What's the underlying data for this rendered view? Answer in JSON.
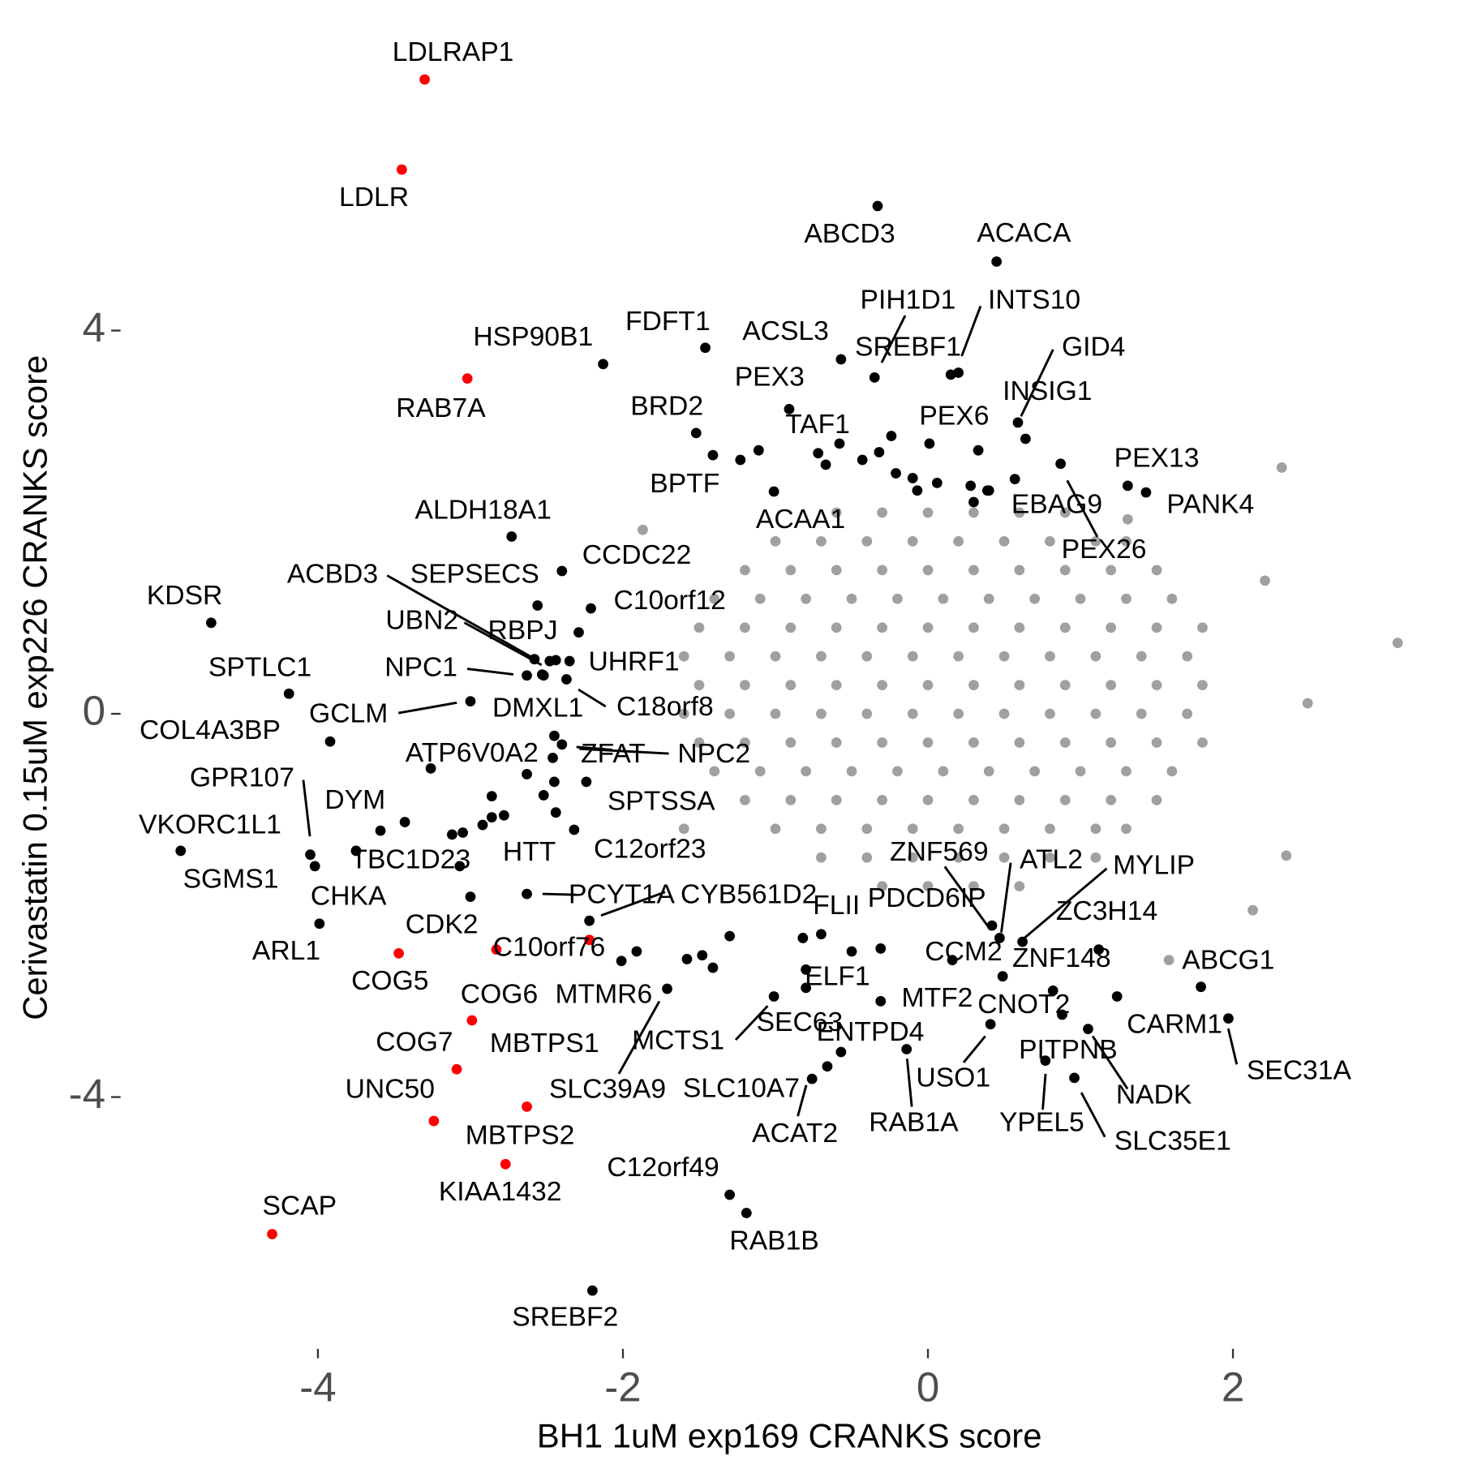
{
  "chart_data": {
    "type": "scatter",
    "xlabel": "BH1 1uM exp169 CRANKS score",
    "ylabel": "Cerivastatin 0.15uM exp226 CRANKS score",
    "xlim": [
      -5.22,
      3.18
    ],
    "ylim": [
      -6.51,
      6.86
    ],
    "xticks": [
      -4,
      -2,
      0,
      2
    ],
    "yticks": [
      -4,
      0,
      4
    ],
    "grid": false,
    "series": [
      {
        "color": "#a0a0a0",
        "x": [
          -0.6,
          -0.3,
          0,
          0.3,
          0.6,
          0.9,
          -1.0,
          -0.7,
          -0.4,
          -0.1,
          0.2,
          0.5,
          0.8,
          1.1,
          1.3,
          -1.2,
          -0.9,
          -0.6,
          -0.3,
          0,
          0.3,
          0.6,
          0.9,
          1.2,
          1.5,
          -1.4,
          -1.1,
          -0.8,
          -0.5,
          -0.2,
          0.1,
          0.4,
          0.7,
          1.0,
          1.3,
          1.6,
          -1.5,
          -1.2,
          -0.9,
          -0.6,
          -0.3,
          0,
          0.3,
          0.6,
          0.9,
          1.2,
          1.5,
          1.8,
          -1.6,
          -1.3,
          -1.0,
          -0.7,
          -0.4,
          -0.1,
          0.2,
          0.5,
          0.8,
          1.1,
          1.4,
          1.7,
          -1.5,
          -1.2,
          -0.9,
          -0.6,
          -0.3,
          0,
          0.3,
          0.6,
          0.9,
          1.2,
          1.5,
          1.8,
          -1.6,
          -1.3,
          -1.0,
          -0.7,
          -0.4,
          -0.1,
          0.2,
          0.5,
          0.8,
          1.1,
          1.4,
          1.7,
          -1.5,
          -1.2,
          -0.9,
          -0.6,
          -0.3,
          0,
          0.3,
          0.6,
          0.9,
          1.2,
          1.5,
          1.8,
          -1.4,
          -1.1,
          -0.8,
          -0.5,
          -0.2,
          0.1,
          0.4,
          0.7,
          1.0,
          1.3,
          1.6,
          -1.2,
          -0.9,
          -0.6,
          -0.3,
          0,
          0.3,
          0.6,
          0.9,
          1.2,
          1.5,
          -1.0,
          -0.7,
          -0.4,
          -0.1,
          0.2,
          0.5,
          0.8,
          1.1,
          1.3,
          -0.7,
          -0.4,
          -0.1,
          0.2,
          0.5,
          0.8,
          1.1,
          -0.3,
          0,
          0.3,
          0.6,
          3.08,
          2.32,
          2.21,
          2.49,
          2.35,
          2.13,
          1.58,
          1.31,
          -1.87,
          -1.6
        ],
        "y": [
          2.1,
          2.1,
          2.1,
          2.1,
          2.1,
          2.1,
          1.8,
          1.8,
          1.8,
          1.8,
          1.8,
          1.8,
          1.8,
          1.8,
          1.8,
          1.5,
          1.5,
          1.5,
          1.5,
          1.5,
          1.5,
          1.5,
          1.5,
          1.5,
          1.5,
          1.2,
          1.2,
          1.2,
          1.2,
          1.2,
          1.2,
          1.2,
          1.2,
          1.2,
          1.2,
          1.2,
          0.9,
          0.9,
          0.9,
          0.9,
          0.9,
          0.9,
          0.9,
          0.9,
          0.9,
          0.9,
          0.9,
          0.9,
          0.6,
          0.6,
          0.6,
          0.6,
          0.6,
          0.6,
          0.6,
          0.6,
          0.6,
          0.6,
          0.6,
          0.6,
          0.3,
          0.3,
          0.3,
          0.3,
          0.3,
          0.3,
          0.3,
          0.3,
          0.3,
          0.3,
          0.3,
          0.3,
          0,
          0,
          0,
          0,
          0,
          0,
          0,
          0,
          0,
          0,
          0,
          0,
          -0.3,
          -0.3,
          -0.3,
          -0.3,
          -0.3,
          -0.3,
          -0.3,
          -0.3,
          -0.3,
          -0.3,
          -0.3,
          -0.3,
          -0.6,
          -0.6,
          -0.6,
          -0.6,
          -0.6,
          -0.6,
          -0.6,
          -0.6,
          -0.6,
          -0.6,
          -0.6,
          -0.9,
          -0.9,
          -0.9,
          -0.9,
          -0.9,
          -0.9,
          -0.9,
          -0.9,
          -0.9,
          -0.9,
          -1.2,
          -1.2,
          -1.2,
          -1.2,
          -1.2,
          -1.2,
          -1.2,
          -1.2,
          -1.2,
          -1.5,
          -1.5,
          -1.5,
          -1.5,
          -1.5,
          -1.5,
          -1.5,
          -1.8,
          -1.8,
          -1.8,
          -1.8,
          0.74,
          2.57,
          1.39,
          0.11,
          -1.48,
          -2.05,
          -2.57,
          2.03,
          1.92,
          -1.2
        ]
      },
      {
        "color": "#000000",
        "labels": [
          "ABCD3",
          "ACACA",
          "FDFT1",
          "HSP90B1",
          "ACSL3",
          "PIH1D1",
          "INTS10",
          "SREBF1",
          "GID4",
          "INSIG1",
          "PEX3",
          "BRD2",
          "TAF1",
          "PEX6",
          "BPTF",
          "EBAG9",
          "PEX26",
          "PEX13",
          "PANK4",
          "ACAA1",
          "ALDH18A1",
          "CCDC22",
          "SEPSECS",
          "ACBD3",
          "KDSR",
          "C10orf12",
          "UBN2",
          "RBPJ",
          "UHRF1",
          "NPC1",
          "C18orf8",
          "SPTLC1",
          "GCLM",
          "DMXL1",
          "COL4A3BP",
          "ATP6V0A2",
          "ZFAT",
          "NPC2",
          "GPR107",
          "DYM",
          "SPTSSA",
          "VKORC1L1",
          "SGMS1",
          "TBC1D23",
          "HTT",
          "C12orf23",
          "PCYT1A",
          "CYB561D2",
          "CHKA",
          "ARL1",
          "CDK2",
          "FLII",
          "PDCD6IP",
          "ZNF569",
          "ATL2",
          "MYLIP",
          "ZC3H14",
          "CCM2",
          "ZNF148",
          "ELF1",
          "MTMR6",
          "SLC39A9",
          "MTF2",
          "CNOT2",
          "SEC63",
          "MCTS1",
          "ENTPD4",
          "SLC10A7",
          "ACAT2",
          "RAB1A",
          "USO1",
          "PITPNB",
          "YPEL5",
          "NADK",
          "SLC35E1",
          "CARM1",
          "ABCG1",
          "SEC31A",
          "C12orf49",
          "RAB1B",
          "SREBF2",
          null,
          null,
          null,
          null,
          null,
          null,
          null,
          null,
          null,
          null,
          null,
          null,
          null,
          null,
          null,
          null,
          null,
          null,
          null,
          null,
          null,
          null,
          null,
          null,
          null,
          null,
          null,
          null,
          null,
          null,
          null,
          null,
          null,
          null,
          null,
          null
        ],
        "x": [
          -0.33,
          0.45,
          -1.46,
          -2.13,
          -0.57,
          -0.35,
          0.2,
          0.15,
          0.59,
          0.64,
          -0.91,
          -1.52,
          -0.72,
          0.01,
          -1.41,
          0.39,
          0.87,
          1.31,
          1.43,
          -1.01,
          -2.73,
          -2.4,
          -2.56,
          -2.58,
          -4.7,
          -2.21,
          -2.48,
          -2.29,
          -2.35,
          -2.63,
          -2.37,
          -4.19,
          -3.0,
          -2.52,
          -3.92,
          -3.26,
          -2.4,
          -2.45,
          -4.05,
          -3.43,
          -2.24,
          -4.9,
          -4.02,
          -3.59,
          -2.32,
          -1.91,
          -2.63,
          -2.22,
          -3.75,
          -3.99,
          -3.0,
          -0.82,
          -0.31,
          0.42,
          0.47,
          0.62,
          1.12,
          0.16,
          0.49,
          -0.8,
          -2.01,
          -1.71,
          -0.31,
          0.82,
          -0.8,
          -1.01,
          -0.57,
          -0.66,
          -0.76,
          -0.14,
          0.41,
          0.88,
          0.77,
          1.05,
          0.96,
          1.24,
          1.79,
          1.97,
          -1.3,
          -1.19,
          -2.2,
          -2.53,
          -2.44,
          -2.46,
          -2.63,
          -2.45,
          -2.52,
          -2.44,
          -3.12,
          -3.05,
          -2.92,
          -2.86,
          -2.78,
          -2.86,
          -3.07,
          -1.23,
          -1.11,
          -0.67,
          -0.58,
          -0.43,
          -0.32,
          -0.24,
          -0.21,
          -0.1,
          -0.07,
          0.06,
          0.28,
          0.3,
          0.4,
          0.57,
          0.33,
          -1.48,
          -1.58,
          -1.41,
          -1.3,
          -0.7,
          -0.5
        ],
        "y": [
          5.3,
          4.72,
          3.82,
          3.65,
          3.7,
          3.51,
          3.56,
          3.54,
          3.04,
          2.87,
          3.18,
          2.93,
          2.72,
          2.82,
          2.7,
          2.33,
          2.61,
          2.38,
          2.31,
          2.32,
          1.85,
          1.49,
          1.13,
          0.57,
          0.95,
          1.1,
          0.55,
          0.85,
          0.55,
          0.4,
          0.36,
          0.21,
          0.13,
          0.4,
          -0.29,
          -0.57,
          -0.32,
          -0.23,
          -1.47,
          -1.13,
          -0.71,
          -1.43,
          -1.59,
          -1.22,
          -1.21,
          -2.48,
          -1.88,
          -2.16,
          -1.43,
          -2.19,
          -1.91,
          -2.34,
          -2.45,
          -2.21,
          -2.34,
          -2.38,
          -2.46,
          -2.57,
          -2.74,
          -2.67,
          -2.58,
          -2.87,
          -3.0,
          -2.89,
          -2.86,
          -2.95,
          -3.53,
          -3.68,
          -3.81,
          -3.5,
          -3.24,
          -3.14,
          -3.62,
          -3.29,
          -3.8,
          -2.95,
          -2.85,
          -3.18,
          -5.02,
          -5.21,
          -6.02,
          0.41,
          0.56,
          -0.46,
          -0.63,
          -0.71,
          -0.85,
          -1.03,
          -1.26,
          -1.24,
          -1.16,
          -1.08,
          -1.06,
          -0.86,
          -1.59,
          2.65,
          2.75,
          2.6,
          2.82,
          2.65,
          2.73,
          2.9,
          2.51,
          2.46,
          2.33,
          2.41,
          2.38,
          2.21,
          2.33,
          2.45,
          2.75,
          -2.52,
          -2.56,
          -2.65,
          -2.32,
          -2.3,
          -2.48
        ]
      },
      {
        "color": "#ff0000",
        "labels": [
          "LDLRAP1",
          "LDLR",
          "RAB7A",
          "COG5",
          "C10orf76",
          "MBTPS1",
          "COG6",
          "COG7",
          "UNC50",
          "MBTPS2",
          "KIAA1432",
          "SCAP"
        ],
        "x": [
          -3.3,
          -3.45,
          -3.02,
          -3.47,
          -2.83,
          -2.22,
          -2.99,
          -3.09,
          -3.24,
          -2.63,
          -2.77,
          -4.3
        ],
        "y": [
          6.62,
          5.68,
          3.5,
          -2.5,
          -2.46,
          -2.36,
          -3.2,
          -3.71,
          -4.25,
          -4.1,
          -4.7,
          -5.43
        ]
      }
    ]
  }
}
